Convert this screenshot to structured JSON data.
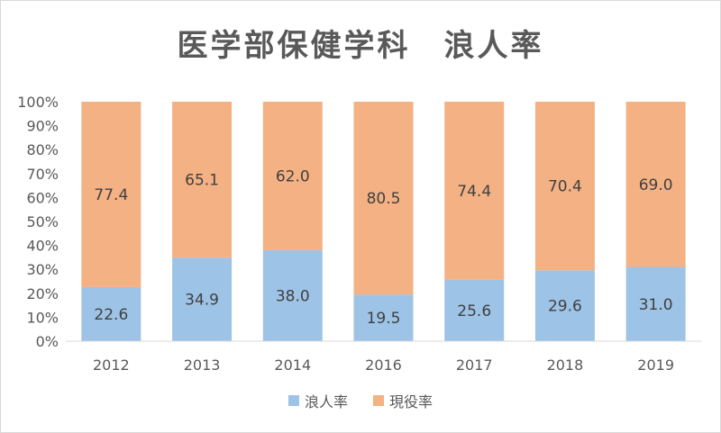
{
  "chart_data": {
    "type": "bar",
    "stacked": true,
    "title": "医学部保健学科　浪人率",
    "categories": [
      "2012",
      "2013",
      "2014",
      "2016",
      "2017",
      "2018",
      "2019"
    ],
    "series": [
      {
        "name": "浪人率",
        "color": "#9dc3e6",
        "values": [
          22.6,
          34.9,
          38.0,
          19.5,
          25.6,
          29.6,
          31.0
        ]
      },
      {
        "name": "現役率",
        "color": "#f4b183",
        "values": [
          77.4,
          65.1,
          62.0,
          80.5,
          74.4,
          70.4,
          69.0
        ]
      }
    ],
    "data_labels": {
      "浪人率": [
        "22.6",
        "34.9",
        "38.0",
        "19.5",
        "25.6",
        "29.6",
        "31.0"
      ],
      "現役率": [
        "77.4",
        "65.1",
        "62.0",
        "80.5",
        "74.4",
        "70.4",
        "69.0"
      ]
    },
    "y_ticks": [
      "0%",
      "10%",
      "20%",
      "30%",
      "40%",
      "50%",
      "60%",
      "70%",
      "80%",
      "90%",
      "100%"
    ],
    "ylim": [
      0,
      100
    ],
    "grid": false,
    "legend": "bottom"
  }
}
